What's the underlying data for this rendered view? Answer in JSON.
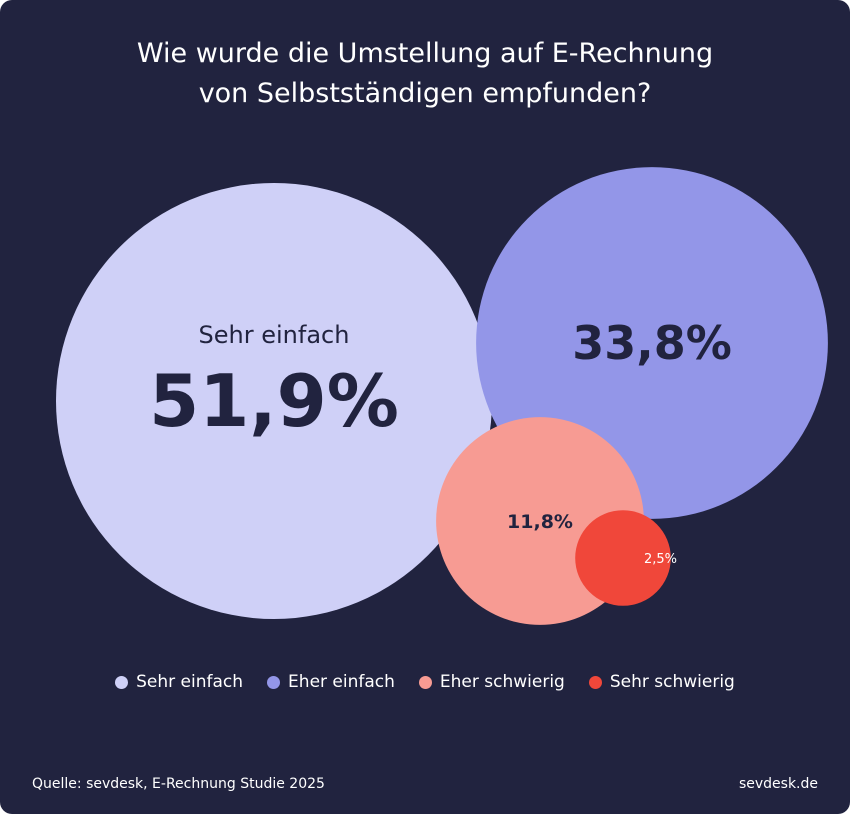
{
  "title_lines": [
    "Wie wurde die Umstellung auf E-Rechnung",
    "von Selbstständigen empfunden?"
  ],
  "chart_data": {
    "type": "bubble",
    "title": "Wie wurde die Umstellung auf E-Rechnung von Selbstständigen empfunden?",
    "categories": [
      "Sehr einfach",
      "Eher einfach",
      "Eher schwierig",
      "Sehr schwierig"
    ],
    "values": [
      51.9,
      33.8,
      11.8,
      2.5
    ],
    "value_labels": [
      "51,9%",
      "33,8%",
      "11,8%",
      "2,5%"
    ],
    "bubble_caption": "Sehr einfach",
    "colors": [
      "#cfd0f7",
      "#9396e8",
      "#f79b93",
      "#f0473a"
    ],
    "label_colors": [
      "#21233f",
      "#21233f",
      "#21233f",
      "#ffffff"
    ],
    "legend_position": "bottom"
  },
  "legend": [
    {
      "label": "Sehr einfach",
      "color": "#cfd0f7"
    },
    {
      "label": "Eher einfach",
      "color": "#9396e8"
    },
    {
      "label": "Eher schwierig",
      "color": "#f79b93"
    },
    {
      "label": "Sehr schwierig",
      "color": "#f0473a"
    }
  ],
  "footer": {
    "source": "Quelle: sevdesk, E-Rechnung Studie 2025",
    "brand": "sevdesk.de"
  },
  "colors": {
    "background": "#21233f",
    "text": "#ffffff"
  }
}
